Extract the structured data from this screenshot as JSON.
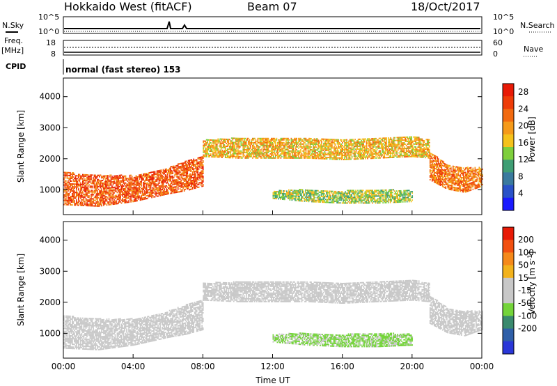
{
  "header": {
    "station": "Hokkaido West (fitACF)",
    "beam": "Beam 07",
    "date": "18/Oct/2017"
  },
  "status_panel": {
    "nsky_label": "N.Sky",
    "nsky_ticks": [
      "10^5",
      "10^0"
    ],
    "nsearch_label": "N.Search",
    "nsearch_ticks": [
      "10^5",
      "10^0"
    ],
    "freq_label": "Freq.",
    "freq_unit": "[MHz]",
    "freq_ticks": [
      "18",
      "8"
    ],
    "nave_label": "Nave",
    "nave_ticks": [
      "60",
      "0"
    ],
    "cpid_label": "CPID",
    "cpid_text": "normal (fast stereo) 153"
  },
  "colors": {
    "power_scale": [
      "#1a1aff",
      "#2a52c8",
      "#3a7a9e",
      "#3f9e74",
      "#7ecf3c",
      "#f5c21b",
      "#f59a1a",
      "#f26a10",
      "#ee3c08",
      "#e81a06"
    ],
    "velocity_scale": [
      "#2a37d8",
      "#2f5fa8",
      "#3a8a6e",
      "#74d43a",
      "#c8c8c8",
      "#c8c8c8",
      "#f2b21c",
      "#f5891a",
      "#f25010",
      "#e81a06"
    ]
  },
  "chart_data": [
    {
      "type": "heatmap",
      "name": "power-panel",
      "ylabel": "Slant Range [km]",
      "xlabel": "",
      "xlim": [
        0,
        24
      ],
      "ylim": [
        200,
        4600
      ],
      "yticks": [
        "1000",
        "2000",
        "3000",
        "4000"
      ],
      "colorbar_label": "Power [dB]",
      "colorbar_ticks": [
        "4",
        "8",
        "12",
        "16",
        "20",
        "24",
        "28"
      ],
      "colorbar_range": [
        0,
        30
      ],
      "bands": [
        {
          "x": [
            0,
            2,
            4,
            6,
            7,
            8
          ],
          "range_low": [
            500,
            450,
            600,
            850,
            950,
            1100
          ],
          "range_high": [
            1550,
            1450,
            1450,
            1700,
            1900,
            2050
          ],
          "power": 24
        },
        {
          "x": [
            8,
            10,
            12,
            14,
            16,
            18,
            20,
            21
          ],
          "range_low": [
            2050,
            2000,
            2000,
            2000,
            1950,
            2000,
            2050,
            2000
          ],
          "range_high": [
            2600,
            2650,
            2650,
            2650,
            2600,
            2650,
            2700,
            2600
          ],
          "power": 18
        },
        {
          "x": [
            12,
            14,
            16,
            18,
            20
          ],
          "range_low": [
            700,
            600,
            550,
            550,
            600
          ],
          "range_high": [
            950,
            1000,
            950,
            1000,
            950
          ],
          "power": 14
        },
        {
          "x": [
            21,
            22,
            23,
            24
          ],
          "range_low": [
            1300,
            1000,
            900,
            1100
          ],
          "range_high": [
            2200,
            1800,
            1700,
            1700
          ],
          "power": 22
        }
      ]
    },
    {
      "type": "heatmap",
      "name": "velocity-panel",
      "ylabel": "Slant Range [km]",
      "xlabel": "Time UT",
      "xlim": [
        0,
        24
      ],
      "ylim": [
        200,
        4600
      ],
      "xticks": [
        "00:00",
        "04:00",
        "08:00",
        "12:00",
        "16:00",
        "20:00",
        "00:00"
      ],
      "yticks": [
        "1000",
        "2000",
        "3000",
        "4000"
      ],
      "colorbar_label": "Velocity [m s-1]",
      "colorbar_ticks": [
        "200",
        "100",
        "50",
        "15",
        "-15",
        "-50",
        "-100",
        "-200"
      ],
      "colorbar_range": [
        -250,
        250
      ],
      "bands": [
        {
          "x": [
            0,
            2,
            4,
            6,
            7,
            8
          ],
          "range_low": [
            500,
            450,
            600,
            850,
            950,
            1100
          ],
          "range_high": [
            1550,
            1450,
            1450,
            1700,
            1900,
            2050
          ],
          "velocity": 0
        },
        {
          "x": [
            8,
            10,
            12,
            14,
            16,
            18,
            20,
            21
          ],
          "range_low": [
            2050,
            2000,
            2000,
            2000,
            1950,
            2000,
            2050,
            2000
          ],
          "range_high": [
            2600,
            2650,
            2650,
            2650,
            2600,
            2650,
            2700,
            2600
          ],
          "velocity": 0
        },
        {
          "x": [
            12,
            14,
            16,
            18,
            20
          ],
          "range_low": [
            700,
            600,
            550,
            550,
            600
          ],
          "range_high": [
            950,
            1000,
            950,
            1000,
            950
          ],
          "velocity": -60
        },
        {
          "x": [
            21,
            22,
            23,
            24
          ],
          "range_low": [
            1300,
            1000,
            900,
            1100
          ],
          "range_high": [
            2200,
            1800,
            1700,
            1700
          ],
          "velocity": 0
        }
      ]
    }
  ]
}
